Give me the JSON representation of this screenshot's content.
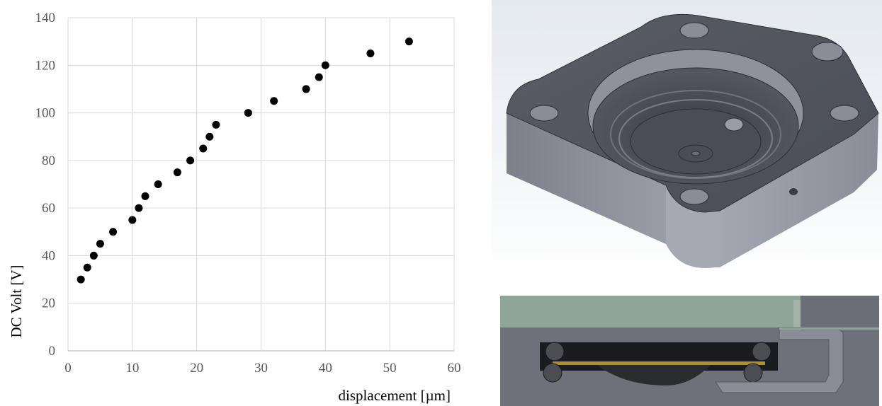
{
  "chart_data": {
    "type": "scatter",
    "xlabel": "displacement [µm]",
    "ylabel": "DC Volt  [V]",
    "xlim": [
      0,
      60
    ],
    "ylim": [
      0,
      140
    ],
    "xticks": [
      "0",
      "10",
      "20",
      "30",
      "40",
      "50",
      "60"
    ],
    "yticks": [
      "0",
      "20",
      "40",
      "60",
      "80",
      "100",
      "120",
      "140"
    ],
    "grid": true,
    "marker_color": "#000000",
    "series": [
      {
        "points": [
          {
            "x": 2,
            "y": 30
          },
          {
            "x": 3,
            "y": 35
          },
          {
            "x": 4,
            "y": 40
          },
          {
            "x": 5,
            "y": 45
          },
          {
            "x": 7,
            "y": 50
          },
          {
            "x": 10,
            "y": 55
          },
          {
            "x": 11,
            "y": 60
          },
          {
            "x": 12,
            "y": 65
          },
          {
            "x": 14,
            "y": 70
          },
          {
            "x": 17,
            "y": 75
          },
          {
            "x": 19,
            "y": 80
          },
          {
            "x": 21,
            "y": 85
          },
          {
            "x": 22,
            "y": 90
          },
          {
            "x": 23,
            "y": 95
          },
          {
            "x": 28,
            "y": 100
          },
          {
            "x": 32,
            "y": 105
          },
          {
            "x": 37,
            "y": 110
          },
          {
            "x": 39,
            "y": 115
          },
          {
            "x": 40,
            "y": 120
          },
          {
            "x": 47,
            "y": 125
          },
          {
            "x": 53,
            "y": 130
          }
        ]
      }
    ]
  },
  "figures": {
    "cad_top": "3d-housing-render",
    "cad_section": "cross-section-render"
  }
}
